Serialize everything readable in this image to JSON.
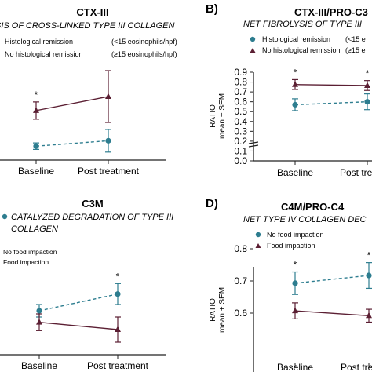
{
  "colors": {
    "remission": "#2d7d8f",
    "no_remission": "#5b1f33",
    "axis": "#222222"
  },
  "chart_data": [
    {
      "id": "A",
      "type": "line",
      "panel_label": "",
      "title": "CTX-III",
      "subtitle": "SIS OF CROSS-LINKED TYPE III COLLAGEN",
      "categories": [
        "Baseline",
        "Post treatment"
      ],
      "legend": [
        {
          "name": "Histological remission",
          "note": "(<15 eosinophils/hpf)"
        },
        {
          "name": "No histological remission",
          "note": "(≥15 eosinophils/hpf)"
        }
      ],
      "series": [
        {
          "name": "Histological remission",
          "values": [
            1.0,
            1.5
          ],
          "err": [
            0.3,
            1.05
          ],
          "style": "dashed",
          "marker": "circle"
        },
        {
          "name": "No histological remission",
          "values": [
            4.3,
            5.6
          ],
          "err": [
            0.8,
            2.4
          ],
          "style": "solid",
          "marker": "triangle"
        }
      ],
      "annotations": [
        {
          "category": "Baseline",
          "text": "*"
        }
      ],
      "ylim": [
        0,
        8
      ],
      "yticks": [],
      "ylabel": "",
      "axis_break": false
    },
    {
      "id": "B",
      "type": "line",
      "panel_label": "B)",
      "title": "CTX-III/PRO-C3",
      "subtitle": "NET FIBROLYSIS OF TYPE III",
      "categories": [
        "Baseline",
        "Post tre"
      ],
      "legend": [
        {
          "name": "Histological remission",
          "note": "(<15 e"
        },
        {
          "name": "No histological remission",
          "note": "(≥15 e"
        }
      ],
      "series": [
        {
          "name": "Histological remission",
          "values": [
            0.57,
            0.6
          ],
          "err": [
            0.06,
            0.08
          ],
          "style": "dashed",
          "marker": "circle"
        },
        {
          "name": "No histological remission",
          "values": [
            0.775,
            0.765
          ],
          "err": [
            0.05,
            0.05
          ],
          "style": "solid",
          "marker": "triangle"
        }
      ],
      "annotations": [
        {
          "category": "Baseline",
          "text": "*"
        },
        {
          "category": "Post tre",
          "text": "*"
        }
      ],
      "ylim": [
        0.0,
        0.9
      ],
      "yticks": [
        "0.0",
        "0.1",
        "0.2",
        "0.3",
        "0.4",
        "0.5",
        "0.6",
        "0.7",
        "0.8",
        "0.9"
      ],
      "ylabel": "RATIO",
      "ylabel2": "mean + SEM",
      "axis_break": true
    },
    {
      "id": "C",
      "type": "line",
      "panel_label": "",
      "title": "C3M",
      "subtitle": "CATALYZED DEGRADATION OF TYPE III",
      "subtitle2": "COLLAGEN",
      "categories": [
        "Baseline",
        "Post treatment"
      ],
      "legend": [
        {
          "name": "No food impaction",
          "note": ""
        },
        {
          "name": "Food impaction",
          "note": ""
        }
      ],
      "series": [
        {
          "name": "No food impaction",
          "values": [
            6.6,
            7.4
          ],
          "err": [
            0.3,
            0.5
          ],
          "style": "dashed",
          "marker": "circle"
        },
        {
          "name": "Food impaction",
          "values": [
            6.05,
            5.7
          ],
          "err": [
            0.4,
            0.6
          ],
          "style": "solid",
          "marker": "triangle"
        }
      ],
      "annotations": [
        {
          "category": "Post treatment",
          "text": "*"
        }
      ],
      "ylim": [
        4.5,
        10.5
      ],
      "yticks": [],
      "ylabel": "",
      "axis_break": false
    },
    {
      "id": "D",
      "type": "line",
      "panel_label": "D)",
      "title": "C4M/PRO-C4",
      "subtitle": "NET TYPE IV COLLAGEN DEC",
      "categories": [
        "Baseline",
        "Post tre"
      ],
      "legend": [
        {
          "name": "No food impaction",
          "note": ""
        },
        {
          "name": "Food impaction",
          "note": ""
        }
      ],
      "series": [
        {
          "name": "No food impaction",
          "values": [
            0.693,
            0.717
          ],
          "err": [
            0.035,
            0.04
          ],
          "style": "dashed",
          "marker": "circle"
        },
        {
          "name": "Food impaction",
          "values": [
            0.607,
            0.592
          ],
          "err": [
            0.025,
            0.02
          ],
          "style": "solid",
          "marker": "triangle"
        }
      ],
      "annotations": [
        {
          "category": "Baseline",
          "text": "*"
        },
        {
          "category": "Post tre",
          "text": "*"
        }
      ],
      "ylim": [
        0.55,
        0.8
      ],
      "yticks": [
        "0.6",
        "0.7",
        "0.8"
      ],
      "ylabel": "RATIO",
      "ylabel2": "mean + SEM",
      "axis_break": false
    }
  ]
}
